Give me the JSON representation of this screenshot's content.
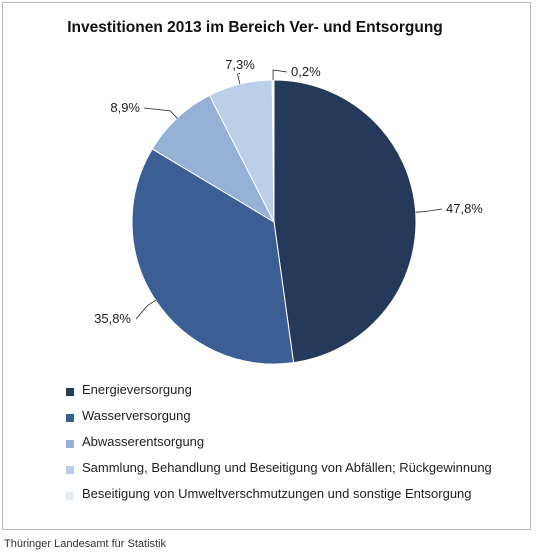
{
  "chart_data": {
    "type": "pie",
    "title": "Investitionen 2013 im Bereich Ver- und Entsorgung",
    "categories": [
      "Energieversorgung",
      "Wasserversorgung",
      "Abwasserentsorgung",
      "Sammlung, Behandlung und Beseitigung von Abfällen; Rückgewinnung",
      "Beseitigung von Umweltverschmutzungen und sonstige Entsorgung"
    ],
    "values": [
      47.8,
      35.8,
      8.9,
      7.3,
      0.2
    ],
    "value_labels": [
      "47,8%",
      "35,8%",
      "8,9%",
      "7,3%",
      "0,2%"
    ],
    "colors": [
      "#253a5a",
      "#3b5f94",
      "#95b1d6",
      "#bccfe8",
      "#e4ebf5"
    ],
    "legend_position": "bottom"
  },
  "source": "Thüringer Landesamt für Statistik"
}
